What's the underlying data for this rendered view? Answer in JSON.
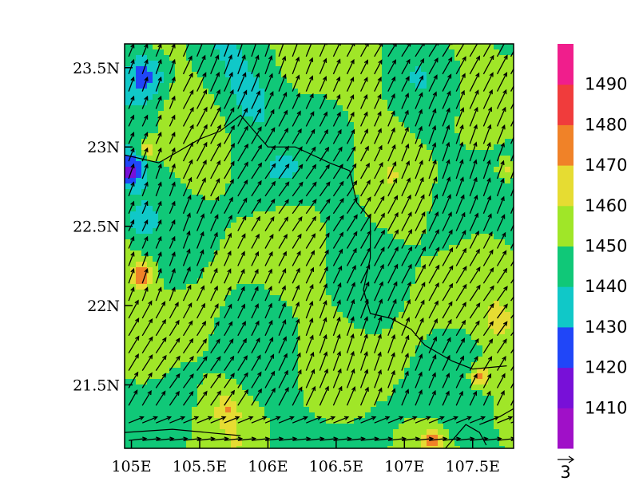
{
  "chart_data": {
    "type": "heatmap",
    "title": "",
    "xlabel": "",
    "ylabel": "",
    "xlim": [
      104.95,
      107.8
    ],
    "ylim": [
      21.1,
      23.65
    ],
    "x_ticks": [
      {
        "value": 105.0,
        "label": "105E"
      },
      {
        "value": 105.5,
        "label": "105.5E"
      },
      {
        "value": 106.0,
        "label": "106E"
      },
      {
        "value": 106.5,
        "label": "106.5E"
      },
      {
        "value": 107.0,
        "label": "107E"
      },
      {
        "value": 107.5,
        "label": "107.5E"
      }
    ],
    "y_ticks": [
      {
        "value": 21.5,
        "label": "21.5N"
      },
      {
        "value": 22.0,
        "label": "22N"
      },
      {
        "value": 22.5,
        "label": "22.5N"
      },
      {
        "value": 23.0,
        "label": "23N"
      },
      {
        "value": 23.5,
        "label": "23.5N"
      }
    ],
    "colorbar": {
      "levels": [
        1410,
        1420,
        1430,
        1440,
        1450,
        1460,
        1470,
        1480,
        1490
      ],
      "colors": [
        "#a010c8",
        "#7810d8",
        "#2046f8",
        "#10c8c8",
        "#10c878",
        "#a0e628",
        "#e6dc32",
        "#f08228",
        "#f03c3c",
        "#f01e8c"
      ]
    },
    "wind_field": {
      "u_typical": 1.3,
      "v_typical": 2.6,
      "reference_vector_label": "3",
      "reference_vector_value": 3
    },
    "field_description": "geopotential height (filled contours) with wind vectors over the Sino-Vietnam border region"
  }
}
